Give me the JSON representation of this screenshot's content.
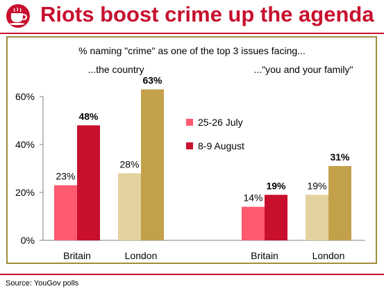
{
  "header": {
    "title": "Riots boost crime up the agenda",
    "logo_color": "#c8102e"
  },
  "footer": {
    "source": "Source: YouGov polls"
  },
  "colors": {
    "accent": "#c8102e",
    "frame": "#a08c3b"
  },
  "legend": [
    {
      "label": "25-26 July",
      "color": "#ff5a6e"
    },
    {
      "label": "8-9 August",
      "color": "#c8102e"
    }
  ],
  "chart_data": {
    "type": "bar",
    "title": "% naming \"crime\" as one of the top 3 issues facing...",
    "ylim": [
      0,
      60
    ],
    "yticks": [
      "0%",
      "20%",
      "40%",
      "60%"
    ],
    "grid": false,
    "legend_position": "center",
    "groups": [
      {
        "label": "...the country",
        "categories": [
          "Britain",
          "London"
        ],
        "series": [
          {
            "name": "25-26 July",
            "values": [
              23,
              28
            ],
            "labels": [
              "23%",
              "28%"
            ]
          },
          {
            "name": "8-9 August",
            "values": [
              48,
              63
            ],
            "labels": [
              "48%",
              "63%"
            ]
          }
        ]
      },
      {
        "label": "...\"you and your family\"",
        "categories": [
          "Britain",
          "London"
        ],
        "series": [
          {
            "name": "25-26 July",
            "values": [
              14,
              19
            ],
            "labels": [
              "14%",
              "19%"
            ]
          },
          {
            "name": "8-9 August",
            "values": [
              19,
              31
            ],
            "labels": [
              "19%",
              "31%"
            ]
          }
        ]
      }
    ],
    "bar_colors": {
      "Britain": [
        "#ff5a6e",
        "#c8102e"
      ],
      "London": [
        "#e3d2a0",
        "#c2a14a"
      ]
    }
  }
}
